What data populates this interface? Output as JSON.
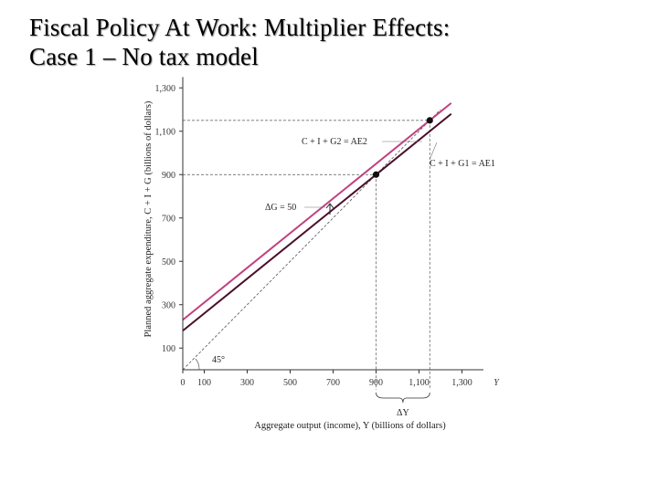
{
  "title": {
    "line1": "Fiscal Policy At Work: Multiplier Effects:",
    "line2": "Case 1 – No tax model"
  },
  "chart_data": {
    "type": "line",
    "xlabel": "Aggregate output (income), Y (billions of dollars)",
    "ylabel": "Planned aggregate expenditure, C + I + G (billions of dollars)",
    "x_axis_symbol": "Y",
    "xlim": [
      0,
      1400
    ],
    "ylim": [
      0,
      1350
    ],
    "x_ticks": [
      0,
      100,
      300,
      500,
      700,
      900,
      1100,
      1300
    ],
    "x_tick_labels": [
      "0",
      "100",
      "300",
      "500",
      "700",
      "900",
      "1,100",
      "1,300"
    ],
    "y_ticks": [
      100,
      300,
      500,
      700,
      900,
      1100,
      1300
    ],
    "y_tick_labels": [
      "100",
      "300",
      "500",
      "700",
      "900",
      "1,100",
      "1,300"
    ],
    "colors": {
      "ae1": "#4a0f2c",
      "ae2": "#c1417f",
      "guide": "#555555"
    },
    "series": [
      {
        "name": "C + I + G1 = AE1",
        "x": [
          0,
          1250
        ],
        "y": [
          180,
          1180
        ]
      },
      {
        "name": "C + I + G2 = AE2",
        "x": [
          0,
          1250
        ],
        "y": [
          230,
          1230
        ]
      },
      {
        "name": "45°",
        "x": [
          0,
          1200
        ],
        "y": [
          0,
          1200
        ]
      }
    ],
    "equilibrium_points": [
      {
        "x": 900,
        "y": 900
      },
      {
        "x": 1150,
        "y": 1150
      }
    ],
    "annotations": {
      "ae2_label": "C + I + G2 = AE2",
      "ae1_label": "C + I + G1 = AE1",
      "delta_g": "ΔG = 50",
      "angle": "45°",
      "delta_y": "ΔY"
    }
  }
}
